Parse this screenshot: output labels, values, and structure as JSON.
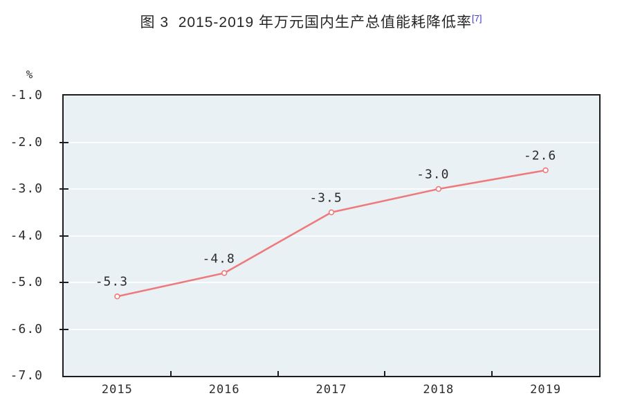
{
  "chart_data": {
    "type": "line",
    "title": "图 3  2015-2019 年万元国内生产总值能耗降低率",
    "footnote_ref": "[7]",
    "unit_label": "%",
    "categories": [
      "2015",
      "2016",
      "2017",
      "2018",
      "2019"
    ],
    "series": [
      {
        "name": "万元国内生产总值能耗降低率",
        "values": [
          -5.3,
          -4.8,
          -3.5,
          -3.0,
          -2.6
        ]
      }
    ],
    "point_labels": [
      "-5.3",
      "-4.8",
      "-3.5",
      "-3.0",
      "-2.6"
    ],
    "ylim": [
      -7.0,
      -1.0
    ],
    "yticks": [
      "-1.0",
      "-2.0",
      "-3.0",
      "-4.0",
      "-5.0",
      "-6.0",
      "-7.0"
    ],
    "grid": "horizontal",
    "legend": "none",
    "colors": {
      "line": "#ee7a7e",
      "marker_fill": "#ffffff",
      "plot_bg": "#e9f1f4",
      "gridline": "#fafdfd",
      "axis": "#1c1c1c",
      "text": "#2b2b2b",
      "footnote": "#3a3ace"
    }
  }
}
